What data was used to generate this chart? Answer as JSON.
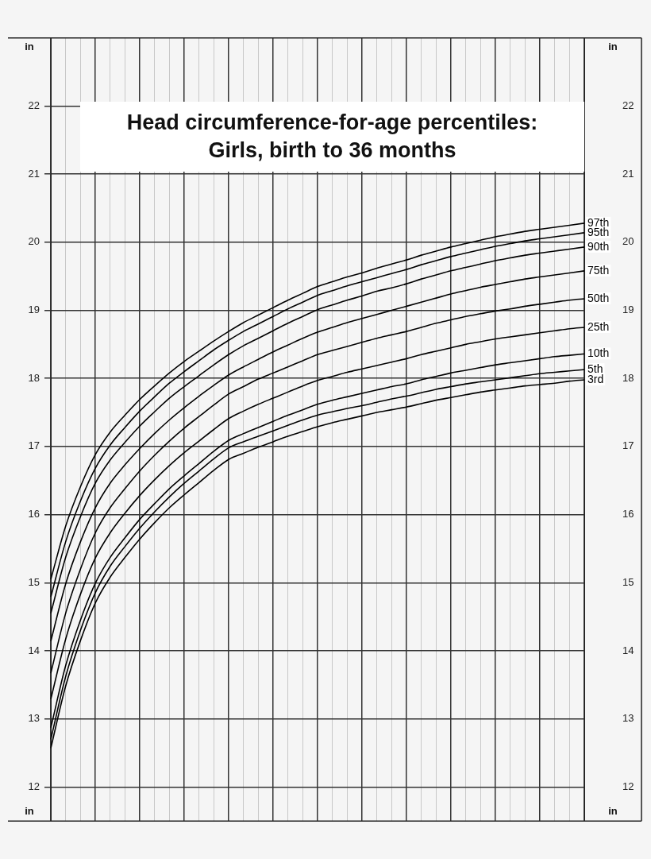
{
  "chart_data": {
    "type": "line",
    "title": "Head circumference-for-age percentiles:",
    "subtitle": "Girls, birth to 36 months",
    "ylabel": "in",
    "y2label": "in",
    "categories": [
      null,
      null,
      null,
      null,
      null,
      null,
      null,
      null,
      null,
      null,
      null,
      null,
      null,
      null,
      null,
      null,
      null,
      null,
      null,
      null,
      null,
      null,
      null,
      null,
      null,
      null,
      null,
      null,
      null,
      null,
      null,
      null,
      null,
      null,
      null,
      null,
      null
    ],
    "ylim": [
      11.5,
      23
    ],
    "yticks": [
      12,
      13,
      14,
      15,
      16,
      17,
      18,
      19,
      20,
      21,
      22
    ],
    "y2lim": [
      11.5,
      23
    ],
    "y2ticks": [
      12,
      13,
      14,
      15,
      16,
      17,
      18,
      19,
      20,
      21,
      22
    ],
    "tick_labels": "y",
    "grid": true,
    "legend": "right",
    "marker": "none",
    "line_style": "solid",
    "series": [
      {
        "name": "97th",
        "color": "#000000",
        "values": [
          15.05,
          15.83,
          16.41,
          16.88,
          17.21,
          17.46,
          17.69,
          17.89,
          18.08,
          18.25,
          18.4,
          18.55,
          18.69,
          18.82,
          18.93,
          19.04,
          19.15,
          19.25,
          19.35,
          19.42,
          19.49,
          19.55,
          19.62,
          19.68,
          19.74,
          19.81,
          19.87,
          19.93,
          19.98,
          20.03,
          20.08,
          20.12,
          20.16,
          20.19,
          20.22,
          20.25,
          20.28
        ]
      },
      {
        "name": "95th",
        "color": "#000000",
        "values": [
          14.79,
          15.6,
          16.2,
          16.68,
          17.02,
          17.28,
          17.52,
          17.73,
          17.93,
          18.1,
          18.26,
          18.42,
          18.56,
          18.69,
          18.8,
          18.91,
          19.02,
          19.12,
          19.22,
          19.29,
          19.36,
          19.42,
          19.48,
          19.54,
          19.6,
          19.67,
          19.73,
          19.79,
          19.84,
          19.89,
          19.94,
          19.98,
          20.02,
          20.05,
          20.08,
          20.11,
          20.14
        ]
      },
      {
        "name": "90th",
        "color": "#000000",
        "values": [
          14.55,
          15.37,
          15.97,
          16.46,
          16.8,
          17.06,
          17.3,
          17.51,
          17.71,
          17.88,
          18.04,
          18.2,
          18.35,
          18.48,
          18.59,
          18.7,
          18.81,
          18.91,
          19.01,
          19.08,
          19.15,
          19.21,
          19.28,
          19.33,
          19.39,
          19.46,
          19.52,
          19.58,
          19.63,
          19.68,
          19.73,
          19.77,
          19.81,
          19.84,
          19.87,
          19.9,
          19.93
        ]
      },
      {
        "name": "75th",
        "color": "#000000",
        "values": [
          14.14,
          14.98,
          15.6,
          16.1,
          16.46,
          16.73,
          16.97,
          17.19,
          17.39,
          17.57,
          17.74,
          17.9,
          18.05,
          18.17,
          18.28,
          18.39,
          18.49,
          18.59,
          18.68,
          18.75,
          18.82,
          18.88,
          18.94,
          19.0,
          19.06,
          19.12,
          19.18,
          19.24,
          19.29,
          19.34,
          19.38,
          19.42,
          19.46,
          19.49,
          19.52,
          19.55,
          19.58
        ]
      },
      {
        "name": "50th",
        "color": "#000000",
        "values": [
          13.67,
          14.55,
          15.2,
          15.73,
          16.1,
          16.38,
          16.64,
          16.87,
          17.08,
          17.27,
          17.44,
          17.61,
          17.77,
          17.88,
          17.99,
          18.08,
          18.17,
          18.26,
          18.35,
          18.41,
          18.47,
          18.53,
          18.59,
          18.64,
          18.69,
          18.75,
          18.81,
          18.86,
          18.91,
          18.95,
          18.99,
          19.02,
          19.06,
          19.09,
          19.12,
          19.15,
          19.17
        ]
      },
      {
        "name": "25th",
        "color": "#000000",
        "values": [
          13.29,
          14.17,
          14.83,
          15.36,
          15.73,
          16.02,
          16.28,
          16.51,
          16.72,
          16.91,
          17.08,
          17.25,
          17.41,
          17.52,
          17.62,
          17.71,
          17.8,
          17.89,
          17.97,
          18.03,
          18.09,
          18.14,
          18.19,
          18.24,
          18.29,
          18.35,
          18.4,
          18.45,
          18.5,
          18.54,
          18.58,
          18.61,
          18.64,
          18.67,
          18.7,
          18.73,
          18.75
        ]
      },
      {
        "name": "10th",
        "color": "#000000",
        "values": [
          12.87,
          13.78,
          14.45,
          14.99,
          15.37,
          15.66,
          15.93,
          16.16,
          16.38,
          16.57,
          16.75,
          16.93,
          17.09,
          17.19,
          17.28,
          17.37,
          17.46,
          17.54,
          17.62,
          17.68,
          17.73,
          17.78,
          17.83,
          17.88,
          17.92,
          17.98,
          18.03,
          18.08,
          18.12,
          18.16,
          18.2,
          18.23,
          18.26,
          18.29,
          18.32,
          18.34,
          18.36
        ]
      },
      {
        "name": "5th",
        "color": "#000000",
        "values": [
          12.7,
          13.62,
          14.3,
          14.85,
          15.24,
          15.53,
          15.8,
          16.04,
          16.26,
          16.46,
          16.64,
          16.82,
          16.98,
          17.07,
          17.15,
          17.23,
          17.31,
          17.39,
          17.46,
          17.51,
          17.56,
          17.6,
          17.65,
          17.7,
          17.74,
          17.79,
          17.84,
          17.88,
          17.92,
          17.95,
          17.98,
          18.01,
          18.04,
          18.07,
          18.09,
          18.11,
          18.13
        ]
      },
      {
        "name": "3rd",
        "color": "#000000",
        "values": [
          12.57,
          13.48,
          14.15,
          14.7,
          15.08,
          15.37,
          15.64,
          15.88,
          16.1,
          16.29,
          16.47,
          16.65,
          16.81,
          16.9,
          16.99,
          17.07,
          17.15,
          17.22,
          17.29,
          17.35,
          17.4,
          17.45,
          17.5,
          17.54,
          17.58,
          17.63,
          17.68,
          17.72,
          17.76,
          17.8,
          17.83,
          17.86,
          17.89,
          17.91,
          17.93,
          17.96,
          17.98
        ]
      }
    ]
  }
}
